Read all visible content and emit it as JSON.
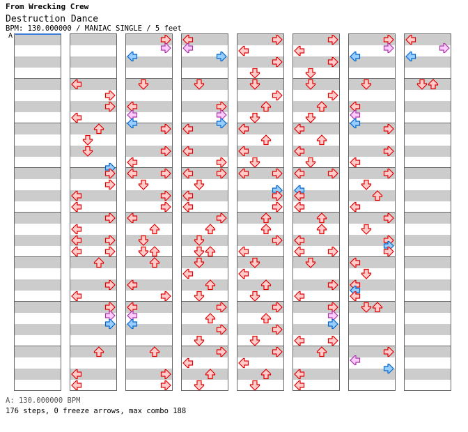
{
  "header": {
    "artist": "From Wrecking Crew",
    "title": "Destruction Dance",
    "info": "BPM: 130.000000 / MANIAC SINGLE / 5 feet",
    "bpm_marker": "A"
  },
  "footer": {
    "bpm_legend": "A: 130.000000 BPM",
    "stats": "176 steps, 0 freeze arrows, max combo 188"
  },
  "colors": {
    "quarter_fill": "#ffcccc",
    "quarter_stroke": "#e00000",
    "eighth_fill": "#99ccff",
    "eighth_stroke": "#0066cc",
    "sixteenth_fill": "#ffccff",
    "sixteenth_stroke": "#aa33aa"
  },
  "chart": {
    "divisions_per_measure": 16,
    "columns": [
      [
        "",
        "",
        "",
        "",
        "",
        "",
        "",
        ""
      ],
      [
        "",
        "0L 4R 8R 12L",
        "0U 4D 8D 14R",
        "0R 4R 8L 12L",
        "0R 4L 8L 8R 12L 12R",
        "0U 8R 12L",
        "0R 3R 6R",
        "0U 8L 12L"
      ],
      [
        "0R 3R 6L",
        "0D 8L 11L 14L",
        "0R 8R 12L",
        "0L 0R 4D 8R 12R",
        "0L 4U 8D 12D 12U",
        "0U 8L 12R",
        "0L 3L 6L",
        "0U 8R 12R"
      ],
      [
        "0L 3L 6R",
        "0D 8R 11R 14R",
        "0L 8L 12R",
        "0L 0R 4D 8L 12L",
        "0R 4U 8D 12D 12U",
        "0D 4L 8U 12D",
        "0R 4U 8R 12D",
        "0R 4L 8U 12D"
      ],
      [
        "0R 4L 8R 12D",
        "0D 4R 8U 12D",
        "0L 4U 8L 12D",
        "0L 0R 6R 8R 12R",
        "0U 4U 8R 12L",
        "0D 4L 8U 12D",
        "0R 4U 8R 12D",
        "0R 4L 8U 12D"
      ],
      [
        "0R 4L 8R 12D",
        "0D 4R 8U 12D",
        "0L 4U 8L 12D",
        "0L 0R 6L 8L 12L",
        "0U 4U 8L 12L 12R",
        "0D 8R 12L",
        "0R 3R 6R 12L 12R",
        "0U 8L 12L"
      ],
      [
        "0R 3R 6L",
        "0D 8L 11L 14L",
        "0R 8R 12L",
        "0R 4D 8U 12L",
        "0R 4D 8R 10R 12R",
        "0L 4D 8L 10L 12L",
        "0D 0U",
        "0R 3L 6R"
      ],
      [
        "0L 3R 6L",
        "0D 0U",
        "",
        "",
        "",
        "",
        "",
        ""
      ]
    ]
  }
}
